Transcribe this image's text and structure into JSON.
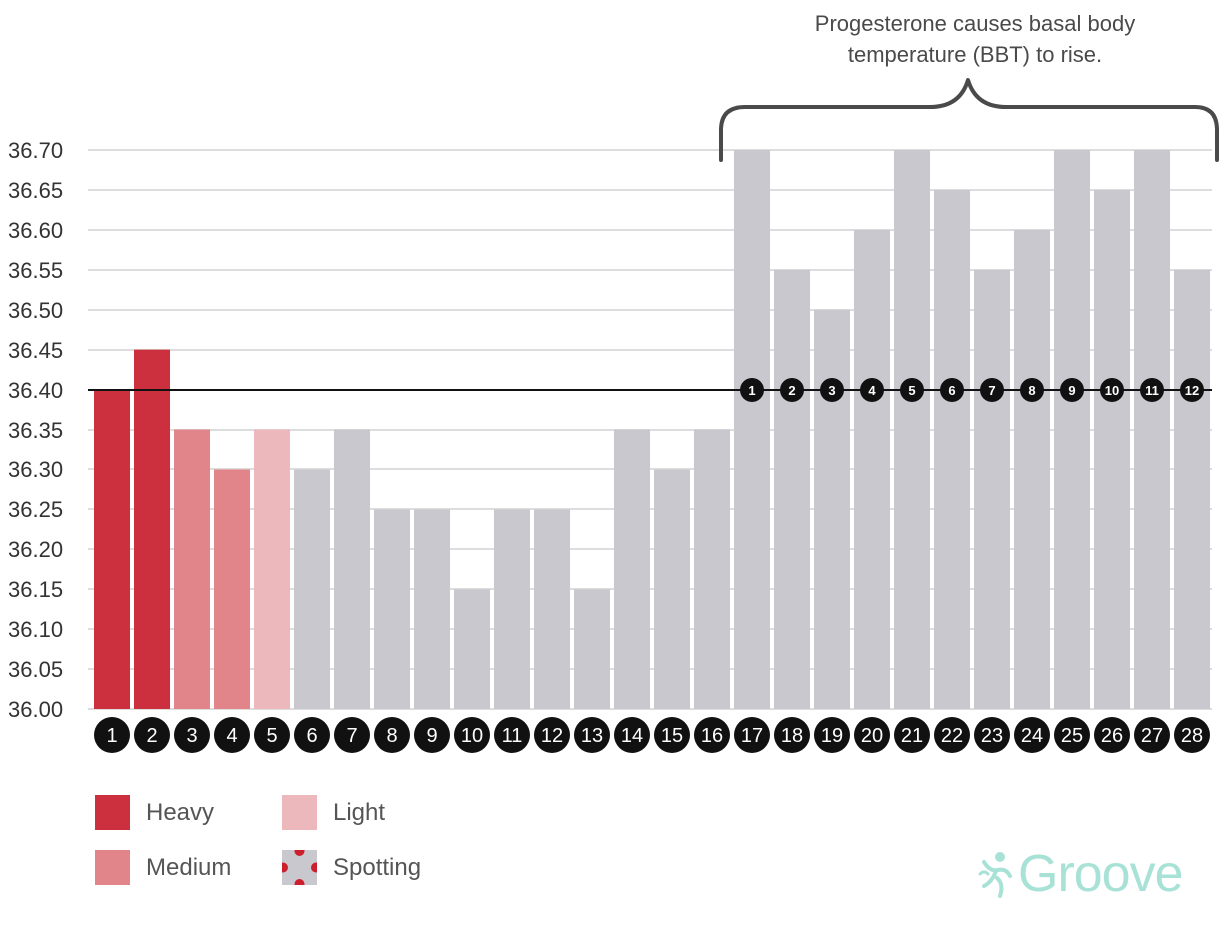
{
  "chart_data": {
    "type": "bar",
    "categories": [
      "1",
      "2",
      "3",
      "4",
      "5",
      "6",
      "7",
      "8",
      "9",
      "10",
      "11",
      "12",
      "13",
      "14",
      "15",
      "16",
      "17",
      "18",
      "19",
      "20",
      "21",
      "22",
      "23",
      "24",
      "25",
      "26",
      "27",
      "28"
    ],
    "values": [
      36.4,
      36.45,
      36.35,
      36.3,
      36.35,
      36.3,
      36.35,
      36.25,
      36.25,
      36.15,
      36.25,
      36.25,
      36.15,
      36.35,
      36.3,
      36.35,
      36.7,
      36.55,
      36.5,
      36.6,
      36.7,
      36.65,
      36.55,
      36.6,
      36.7,
      36.65,
      36.7,
      36.55
    ],
    "flow": [
      "heavy",
      "heavy",
      "medium",
      "medium",
      "light",
      "none",
      "none",
      "none",
      "none",
      "none",
      "none",
      "none",
      "none",
      "none",
      "none",
      "none",
      "none",
      "none",
      "none",
      "none",
      "none",
      "none",
      "none",
      "none",
      "none",
      "none",
      "none",
      "none"
    ],
    "ylim": [
      36.0,
      36.7
    ],
    "yticks": [
      "36.70",
      "36.65",
      "36.60",
      "36.55",
      "36.50",
      "36.45",
      "36.40",
      "36.35",
      "36.30",
      "36.25",
      "36.20",
      "36.15",
      "36.10",
      "36.05",
      "36.00"
    ],
    "reference_line": 36.4,
    "luteal_day_labels": [
      "1",
      "2",
      "3",
      "4",
      "5",
      "6",
      "7",
      "8",
      "9",
      "10",
      "11",
      "12"
    ],
    "luteal_start_index": 16,
    "grid": true,
    "annotation": "Progesterone causes basal body temperature (BBT) to rise.",
    "legend": [
      {
        "label": "Heavy",
        "color": "#cc303f",
        "pattern": "solid"
      },
      {
        "label": "Light",
        "color": "#edb8bc",
        "pattern": "solid"
      },
      {
        "label": "Medium",
        "color": "#e1858b",
        "pattern": "solid"
      },
      {
        "label": "Spotting",
        "color": "#c9c8ce",
        "dot_color": "#cc1f2d",
        "pattern": "dots"
      }
    ],
    "colors": {
      "heavy": "#cc303f",
      "medium": "#e1858b",
      "light": "#edb8bc",
      "none": "#c9c8ce",
      "grid": "#dddddd",
      "reference": "#111111",
      "badge": "#111111"
    }
  },
  "brand": {
    "name": "Groove",
    "color": "#a8e2d6"
  }
}
